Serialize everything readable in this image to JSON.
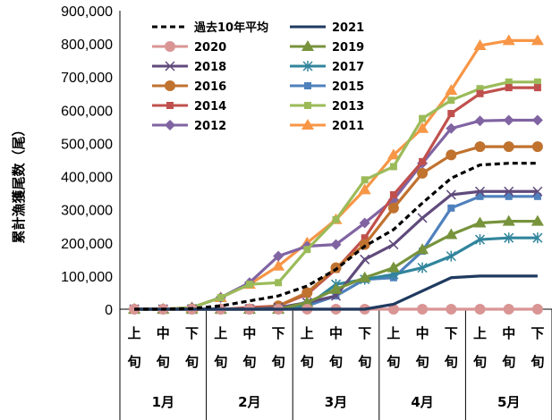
{
  "chart_data": {
    "type": "line",
    "ylabel": "累計漁獲尾数（尾）",
    "ylim": [
      0,
      900000
    ],
    "yticks": [
      "0",
      "100,000",
      "200,000",
      "300,000",
      "400,000",
      "500,000",
      "600,000",
      "700,000",
      "800,000",
      "900,000"
    ],
    "periods": [
      "上\n旬",
      "中\n旬",
      "下\n旬",
      "上\n旬",
      "中\n旬",
      "下\n旬",
      "上\n旬",
      "中\n旬",
      "下\n旬",
      "上\n旬",
      "中\n旬",
      "下\n旬",
      "上\n旬",
      "中\n旬",
      "下\n旬"
    ],
    "months": [
      "1月",
      "2月",
      "3月",
      "4月",
      "5月"
    ],
    "legend_placement": "top-left-inside",
    "series": [
      {
        "name": "過去10年平均",
        "color": "#000000",
        "dash": true,
        "marker": "none",
        "values": [
          0,
          0,
          2000,
          10000,
          25000,
          40000,
          70000,
          120000,
          190000,
          240000,
          320000,
          395000,
          435000,
          440000,
          440000
        ]
      },
      {
        "name": "2021",
        "color": "#1f3a5f",
        "marker": "none",
        "values": [
          0,
          0,
          0,
          0,
          0,
          0,
          0,
          0,
          0,
          15000,
          55000,
          95000,
          100000,
          100000,
          100000
        ]
      },
      {
        "name": "2020",
        "color": "#d99594",
        "marker": "circle",
        "values": [
          0,
          0,
          0,
          0,
          0,
          0,
          0,
          0,
          0,
          0,
          0,
          0,
          0,
          0,
          0
        ]
      },
      {
        "name": "2019",
        "color": "#77933c",
        "marker": "triangle",
        "values": [
          0,
          0,
          0,
          0,
          0,
          0,
          20000,
          60000,
          95000,
          125000,
          180000,
          225000,
          260000,
          265000,
          265000
        ]
      },
      {
        "name": "2018",
        "color": "#604a7b",
        "marker": "x",
        "values": [
          0,
          0,
          0,
          0,
          0,
          5000,
          20000,
          40000,
          150000,
          195000,
          275000,
          345000,
          355000,
          355000,
          355000
        ]
      },
      {
        "name": "2017",
        "color": "#31859c",
        "marker": "asterisk",
        "values": [
          0,
          0,
          0,
          0,
          0,
          0,
          10000,
          75000,
          90000,
          105000,
          125000,
          160000,
          210000,
          215000,
          215000
        ]
      },
      {
        "name": "2016",
        "color": "#c0722f",
        "marker": "circle",
        "values": [
          0,
          0,
          0,
          0,
          0,
          10000,
          50000,
          125000,
          195000,
          305000,
          410000,
          465000,
          490000,
          490000,
          490000
        ]
      },
      {
        "name": "2015",
        "color": "#4f81bd",
        "marker": "square",
        "values": [
          0,
          0,
          0,
          0,
          0,
          0,
          10000,
          40000,
          90000,
          95000,
          175000,
          305000,
          340000,
          340000,
          340000
        ]
      },
      {
        "name": "2014",
        "color": "#c0504d",
        "marker": "square",
        "values": [
          0,
          0,
          0,
          0,
          5000,
          10000,
          45000,
          120000,
          215000,
          345000,
          445000,
          590000,
          650000,
          668000,
          668000
        ]
      },
      {
        "name": "2013",
        "color": "#9bbb59",
        "marker": "square",
        "values": [
          0,
          0,
          5000,
          35000,
          75000,
          80000,
          180000,
          270000,
          390000,
          430000,
          575000,
          630000,
          665000,
          685000,
          685000
        ]
      },
      {
        "name": "2012",
        "color": "#8064a2",
        "marker": "diamond",
        "values": [
          0,
          0,
          5000,
          35000,
          80000,
          160000,
          190000,
          195000,
          260000,
          330000,
          440000,
          545000,
          568000,
          570000,
          570000
        ]
      },
      {
        "name": "2011",
        "color": "#f79646",
        "marker": "triangle",
        "values": [
          0,
          0,
          5000,
          35000,
          75000,
          130000,
          200000,
          270000,
          360000,
          465000,
          545000,
          660000,
          795000,
          810000,
          810000
        ]
      }
    ]
  }
}
